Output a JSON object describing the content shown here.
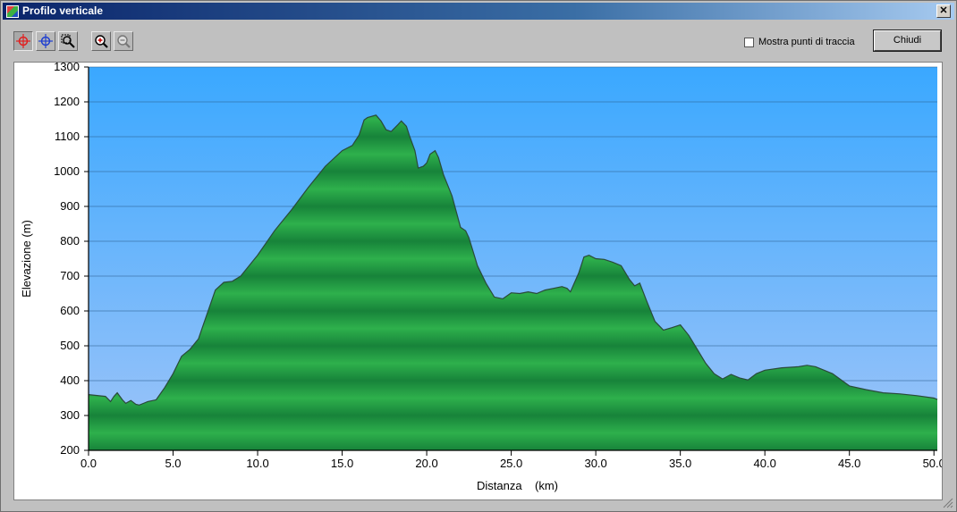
{
  "window": {
    "title": "Profilo verticale",
    "close_glyph": "✕"
  },
  "toolbar": {
    "tools": [
      {
        "name": "select-point-red-icon",
        "color": "#e02020"
      },
      {
        "name": "select-point-blue-icon",
        "color": "#2040d0"
      },
      {
        "name": "zoom-area-icon"
      },
      {
        "name": "zoom-in-icon"
      },
      {
        "name": "zoom-out-icon"
      }
    ],
    "show_track_points_label": "Mostra punti di traccia",
    "show_track_points_checked": false,
    "close_label": "Chiudi"
  },
  "chart_data": {
    "type": "area",
    "xlabel": "Distanza    (km)",
    "ylabel": "Elevazione (m)",
    "xlim": [
      0,
      50.2
    ],
    "ylim": [
      200,
      1300
    ],
    "xticks": [
      "0.0",
      "5.0",
      "10.0",
      "15.0",
      "20.0",
      "25.0",
      "30.0",
      "35.0",
      "40.0",
      "45.0",
      "50.0"
    ],
    "yticks": [
      "200",
      "300",
      "400",
      "500",
      "600",
      "700",
      "800",
      "900",
      "1000",
      "1100",
      "1200",
      "1300"
    ],
    "grid": true,
    "colors": {
      "sky_top": "#3aa8ff",
      "sky_bottom": "#9ec4f8",
      "fill_light": "#2eb04c",
      "fill_dark": "#17833a",
      "line": "#2a4a3a"
    },
    "x": [
      0,
      1,
      1.3,
      1.5,
      1.7,
      2,
      2.2,
      2.5,
      2.8,
      3,
      3.3,
      3.5,
      4,
      4.5,
      5,
      5.5,
      6,
      6.5,
      7,
      7.5,
      8,
      8.5,
      9,
      9.5,
      10,
      11,
      12,
      13,
      14,
      15,
      15.6,
      16,
      16.3,
      16.5,
      17,
      17.3,
      17.6,
      17.9,
      18,
      18.3,
      18.5,
      18.8,
      19,
      19.3,
      19.5,
      19.8,
      20,
      20.2,
      20.5,
      20.7,
      21,
      21.5,
      22,
      22.3,
      22.5,
      23,
      23.5,
      24,
      24.5,
      25,
      25.5,
      26,
      26.5,
      27,
      27.5,
      28,
      28.3,
      28.5,
      29,
      29.3,
      29.6,
      30,
      30.5,
      31,
      31.5,
      32,
      32.3,
      32.6,
      33,
      33.5,
      34,
      34.5,
      35,
      35.5,
      36,
      36.5,
      37,
      37.5,
      38,
      38.5,
      39,
      39.5,
      40,
      41,
      42,
      42.5,
      43,
      44,
      45,
      46,
      47,
      48,
      49,
      50,
      50.2
    ],
    "y": [
      360,
      355,
      340,
      355,
      365,
      345,
      335,
      343,
      332,
      330,
      336,
      340,
      345,
      380,
      420,
      470,
      490,
      520,
      590,
      660,
      682,
      685,
      700,
      730,
      760,
      830,
      890,
      955,
      1015,
      1060,
      1075,
      1105,
      1148,
      1155,
      1162,
      1145,
      1120,
      1115,
      1120,
      1135,
      1145,
      1130,
      1100,
      1060,
      1010,
      1015,
      1025,
      1050,
      1060,
      1040,
      990,
      930,
      840,
      830,
      810,
      730,
      680,
      640,
      635,
      652,
      650,
      655,
      650,
      660,
      665,
      670,
      665,
      655,
      710,
      755,
      760,
      750,
      748,
      740,
      730,
      690,
      672,
      680,
      630,
      570,
      545,
      552,
      560,
      530,
      490,
      450,
      420,
      405,
      418,
      408,
      402,
      420,
      430,
      437,
      440,
      444,
      440,
      420,
      385,
      374,
      365,
      362,
      357,
      350,
      346
    ]
  }
}
